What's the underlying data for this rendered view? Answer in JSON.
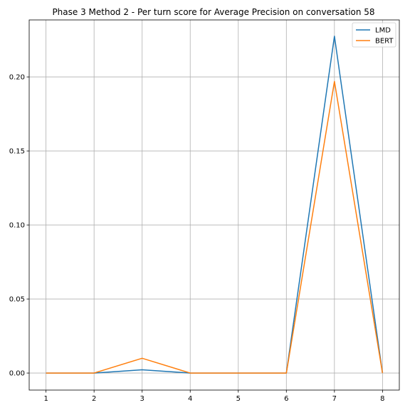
{
  "chart_data": {
    "type": "line",
    "title": "Phase 3 Method 2 - Per turn score for Average Precision on conversation 58",
    "xlabel": "",
    "ylabel": "",
    "x": [
      1,
      2,
      3,
      4,
      5,
      6,
      7,
      8
    ],
    "xticks": [
      "1",
      "2",
      "3",
      "4",
      "5",
      "6",
      "7",
      "8"
    ],
    "yticks": [
      "0.00",
      "0.05",
      "0.10",
      "0.15",
      "0.20"
    ],
    "ytick_values": [
      0,
      0.05,
      0.1,
      0.15,
      0.2
    ],
    "xlim": [
      0.65,
      8.35
    ],
    "ylim": [
      -0.0115,
      0.2385
    ],
    "grid": true,
    "legend_position": "top-right",
    "series": [
      {
        "name": "LMD",
        "color": "#1f77b4",
        "values": [
          0,
          0,
          0.0022,
          0,
          0,
          0,
          0.2275,
          0
        ]
      },
      {
        "name": "BERT",
        "color": "#ff7f0e",
        "values": [
          0,
          0,
          0.01,
          0,
          0,
          0,
          0.197,
          0
        ]
      }
    ]
  }
}
